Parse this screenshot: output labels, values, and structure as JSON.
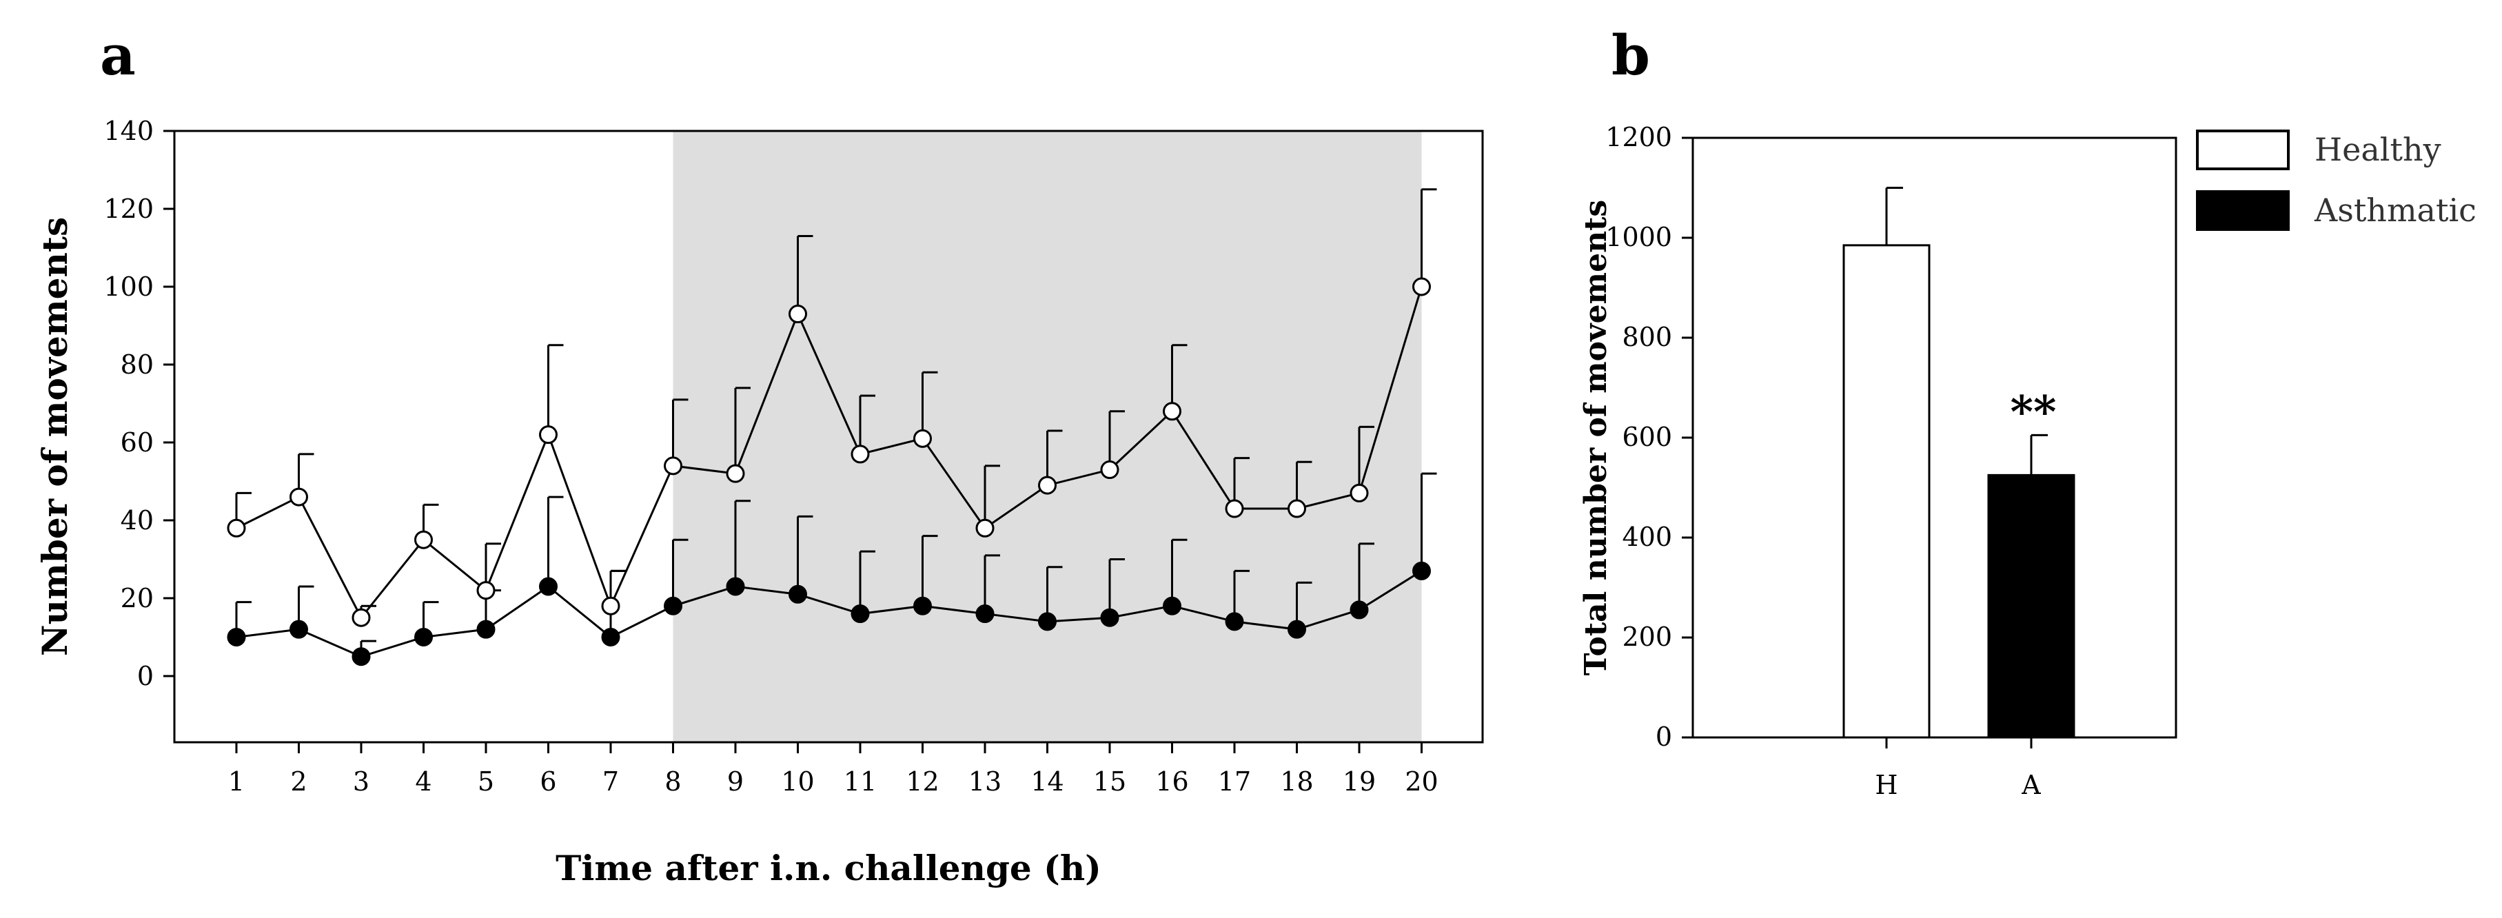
{
  "colors": {
    "shade": "#dedede",
    "healthy_fill": "#ffffff",
    "asthmatic_fill": "#000000",
    "stroke": "#000000"
  },
  "chart_data": [
    {
      "panel": "a",
      "type": "line",
      "xlabel": "Time after i.n. challenge (h)",
      "ylabel": "Number of movements",
      "ylim": [
        -17,
        140
      ],
      "yticks": [
        0,
        20,
        40,
        60,
        80,
        100,
        120,
        140
      ],
      "x": [
        1,
        2,
        3,
        4,
        5,
        6,
        7,
        8,
        9,
        10,
        11,
        12,
        13,
        14,
        15,
        16,
        17,
        18,
        19,
        20
      ],
      "shaded_region": [
        8,
        20
      ],
      "series": [
        {
          "name": "Healthy",
          "marker": "open-circle",
          "values": [
            38,
            46,
            15,
            35,
            22,
            62,
            18,
            54,
            52,
            93,
            57,
            61,
            38,
            49,
            53,
            68,
            43,
            43,
            47,
            100
          ],
          "error_upper": [
            47,
            57,
            18,
            44,
            34,
            85,
            27,
            71,
            74,
            113,
            72,
            78,
            54,
            63,
            68,
            85,
            56,
            55,
            64,
            125
          ]
        },
        {
          "name": "Asthmatic",
          "marker": "filled-circle",
          "values": [
            10,
            12,
            5,
            10,
            12,
            23,
            10,
            18,
            23,
            21,
            16,
            18,
            16,
            14,
            15,
            18,
            14,
            12,
            17,
            27
          ],
          "error_upper": [
            19,
            23,
            9,
            19,
            22,
            46,
            27,
            35,
            45,
            41,
            32,
            36,
            31,
            28,
            30,
            35,
            27,
            24,
            34,
            52
          ]
        }
      ]
    },
    {
      "panel": "b",
      "type": "bar",
      "categories": [
        "H",
        "A"
      ],
      "ylabel": "Total number of movements",
      "ylim": [
        0,
        1200
      ],
      "yticks": [
        0,
        200,
        400,
        600,
        800,
        1000,
        1200
      ],
      "series": [
        {
          "name": "Healthy",
          "value": 985,
          "error_upper": 1100
        },
        {
          "name": "Asthmatic",
          "value": 525,
          "error_upper": 605
        }
      ],
      "annotation": "**",
      "legend": [
        "Healthy",
        "Asthmatic"
      ]
    }
  ]
}
